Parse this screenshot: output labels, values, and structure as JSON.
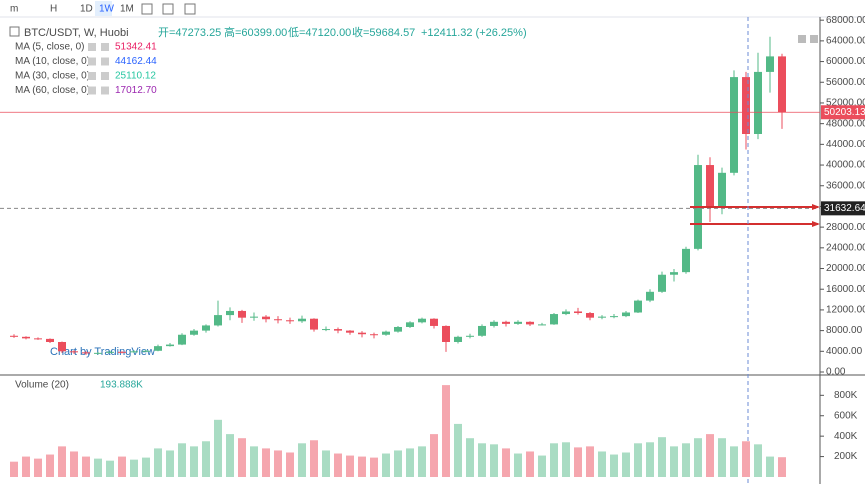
{
  "toolbar": {
    "items": [
      "m",
      "H",
      "1D",
      "1W",
      "1M"
    ],
    "active": 3
  },
  "legend": {
    "symbol": "BTC/USDT, W, Huobi",
    "open": "开=47273.25",
    "high": "高=60399.00",
    "low": "低=47120.00",
    "close": "收=59684.57",
    "change": "+12411.32 (+26.25%)"
  },
  "indicators": [
    {
      "name": "MA (5, close, 0)",
      "value": "51342.41",
      "color": "#e91e63"
    },
    {
      "name": "MA (10, close, 0)",
      "value": "44162.44",
      "color": "#2962ff"
    },
    {
      "name": "MA (30, close, 0)",
      "value": "25110.12",
      "color": "#26c6a0"
    },
    {
      "name": "MA (60, close, 0)",
      "value": "17012.70",
      "color": "#9c27b0"
    }
  ],
  "volume_legend": {
    "name": "Volume (20)",
    "value": "193.888K"
  },
  "watermark": "Chart by TradingView",
  "chart_data": [
    {
      "type": "candlestick",
      "open": [
        7000,
        6800,
        6500,
        6400,
        5800,
        4000,
        3800,
        3600,
        3700,
        3900,
        3800,
        4000,
        4100,
        5000,
        5300,
        7200,
        8000,
        9000,
        11000,
        11800,
        10500,
        10700,
        10200,
        10000,
        9800,
        10300,
        8200,
        8300,
        8000,
        7600,
        7300,
        7200,
        7800,
        8700,
        9600,
        10300,
        8900,
        5800,
        6800,
        7000,
        8900,
        9700,
        9300,
        9700,
        9200,
        9200,
        11200,
        11700,
        11400,
        10500,
        10700,
        10800,
        11500,
        13800,
        15500,
        18800,
        19300,
        23800,
        40000,
        32000,
        38500,
        57000,
        46000,
        58000,
        61000
      ],
      "high": [
        7300,
        6900,
        6700,
        6500,
        5900,
        4200,
        4000,
        3900,
        4100,
        4000,
        4200,
        4300,
        5300,
        5600,
        7500,
        8300,
        9200,
        13800,
        12500,
        12000,
        11500,
        11000,
        10800,
        10500,
        10900,
        10400,
        8800,
        8600,
        8100,
        7900,
        7600,
        8000,
        8900,
        9800,
        10500,
        10400,
        9000,
        7000,
        7400,
        9200,
        10000,
        9900,
        10000,
        9800,
        9500,
        11400,
        12100,
        12400,
        11600,
        11000,
        11200,
        11800,
        14000,
        16000,
        19400,
        19900,
        24200,
        42000,
        41500,
        39500,
        58300,
        58000,
        61700,
        64800,
        61500
      ],
      "low": [
        6600,
        6300,
        6200,
        5600,
        3700,
        3500,
        3300,
        3400,
        3600,
        3600,
        3700,
        3900,
        4000,
        4900,
        5200,
        7000,
        7600,
        8800,
        10000,
        9500,
        9900,
        9600,
        9400,
        9300,
        9500,
        7800,
        7900,
        7500,
        7200,
        6700,
        6500,
        7000,
        7600,
        8500,
        9400,
        8400,
        3900,
        5500,
        6500,
        6800,
        8600,
        8800,
        9100,
        8900,
        9000,
        9100,
        11000,
        11100,
        10000,
        10200,
        10400,
        10600,
        11400,
        13500,
        15300,
        17500,
        19000,
        23500,
        29000,
        30500,
        38000,
        43000,
        45000,
        54000,
        47000
      ],
      "close": [
        6800,
        6500,
        6400,
        5800,
        4000,
        3800,
        3600,
        3700,
        3900,
        3800,
        4000,
        4100,
        5000,
        5300,
        7200,
        8000,
        9000,
        11000,
        11800,
        10500,
        10700,
        10200,
        10000,
        9800,
        10300,
        8200,
        8300,
        8000,
        7600,
        7300,
        7200,
        7800,
        8700,
        9600,
        10300,
        8900,
        5800,
        6800,
        7000,
        8900,
        9700,
        9300,
        9700,
        9200,
        9200,
        11200,
        11700,
        11400,
        10500,
        10700,
        10800,
        11500,
        13800,
        15500,
        18800,
        19300,
        23800,
        40000,
        32000,
        38500,
        57000,
        46000,
        58000,
        61000,
        50203.13
      ],
      "up_color": "#53b987",
      "down_color": "#eb4d5c",
      "ylim": [
        0,
        69000
      ],
      "yticks": [
        {
          "value": 0,
          "label": "0.00"
        },
        {
          "value": 4000,
          "label": "4000.00"
        },
        {
          "value": 8000,
          "label": "8000.00"
        },
        {
          "value": 12000,
          "label": "12000.00"
        },
        {
          "value": 16000,
          "label": "16000.00"
        },
        {
          "value": 20000,
          "label": "20000.00"
        },
        {
          "value": 24000,
          "label": "24000.00"
        },
        {
          "value": 28000,
          "label": "28000.00"
        },
        {
          "value": 32000,
          "label": "32000.00"
        },
        {
          "value": 36000,
          "label": "36000.00"
        },
        {
          "value": 40000,
          "label": "40000.00"
        },
        {
          "value": 44000,
          "label": "44000.00"
        },
        {
          "value": 48000,
          "label": "48000.00"
        },
        {
          "value": 52000,
          "label": "52000.00"
        },
        {
          "value": 56000,
          "label": "56000.00"
        },
        {
          "value": 60000,
          "label": "60000.00"
        },
        {
          "value": 64000,
          "label": "64000.00"
        },
        {
          "value": 68000,
          "label": "68000.00"
        }
      ],
      "price_line": {
        "value": 50203.13,
        "label": "50203.13"
      },
      "crosshair_line": {
        "value": 31632.64,
        "label": "31632.64"
      },
      "rays": [
        31900,
        28600
      ]
    },
    {
      "type": "bar",
      "values": [
        150000,
        200000,
        180000,
        220000,
        300000,
        250000,
        200000,
        180000,
        160000,
        200000,
        170000,
        190000,
        280000,
        260000,
        330000,
        300000,
        350000,
        560000,
        420000,
        380000,
        300000,
        280000,
        260000,
        240000,
        330000,
        360000,
        260000,
        230000,
        210000,
        200000,
        190000,
        230000,
        260000,
        280000,
        300000,
        420000,
        900000,
        520000,
        380000,
        330000,
        320000,
        280000,
        230000,
        250000,
        210000,
        330000,
        340000,
        290000,
        300000,
        250000,
        220000,
        240000,
        330000,
        340000,
        390000,
        300000,
        330000,
        380000,
        420000,
        380000,
        300000,
        350000,
        320000,
        200000,
        193888
      ],
      "up_color": "#a9dcc3",
      "down_color": "#f5a6ae",
      "ylim": [
        0,
        950000
      ],
      "yticks": [
        {
          "value": 200000,
          "label": "200K"
        },
        {
          "value": 400000,
          "label": "400K"
        },
        {
          "value": 600000,
          "label": "600K"
        },
        {
          "value": 800000,
          "label": "800K"
        }
      ]
    }
  ]
}
